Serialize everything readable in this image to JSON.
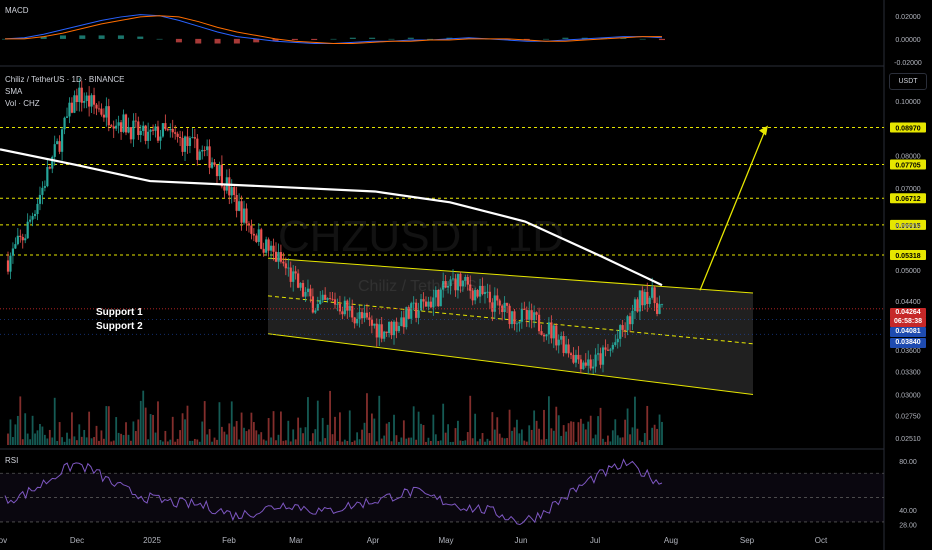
{
  "symbol": {
    "pair": "Chiliz / TetherUS · 1D · BINANCE",
    "indicator1": "SMA",
    "indicator2": "Vol · CHZ",
    "watermark_big": "CHZUSDT, 1D",
    "watermark_small": "Chiliz / TetherUS"
  },
  "panes": {
    "macd_title": "MACD",
    "rsi_title": "RSI",
    "currency_button": "USDT"
  },
  "annotations": {
    "support1": "Support 1",
    "support2": "Support 2"
  },
  "price_tags": {
    "current": "0.04264",
    "countdown": "06:58:38",
    "support1": "0.04081",
    "support2": "0.03840"
  },
  "colors": {
    "background": "#000000",
    "candle_up": "#26a69a",
    "candle_down": "#ef5350",
    "sma": "#ffffff",
    "level_line": "#e6e600",
    "channel_fill": "#3a3a3a",
    "macd_line": "#2962ff",
    "signal_line": "#ff6d00",
    "rsi_line": "#7e57c2",
    "current_tag": "#c62828",
    "support_tag": "#1e4bb0"
  },
  "chart_data": [
    {
      "type": "line",
      "title": "MACD",
      "ylim": [
        -0.02,
        0.025
      ],
      "y_ticks": [
        "0.02000",
        "0.00000",
        "-0.02000"
      ],
      "series": [
        {
          "name": "",
          "values": [
            0.0,
            0.001,
            0.004,
            0.008,
            0.012,
            0.016,
            0.019,
            0.021,
            0.02,
            0.016,
            0.011,
            0.006,
            0.002,
            0.0,
            -0.002,
            -0.003,
            -0.004,
            -0.004,
            -0.003,
            -0.002,
            -0.002,
            -0.001,
            -0.001,
            0.0,
            0.001,
            0.0,
            -0.001,
            -0.002,
            -0.002,
            -0.001,
            0.0,
            0.001,
            0.002,
            0.002,
            0.001
          ]
        },
        {
          "name": "",
          "values": [
            0.0,
            0.0,
            0.002,
            0.005,
            0.009,
            0.013,
            0.016,
            0.019,
            0.02,
            0.019,
            0.015,
            0.01,
            0.006,
            0.003,
            0.0,
            -0.002,
            -0.003,
            -0.004,
            -0.004,
            -0.003,
            -0.002,
            -0.002,
            -0.001,
            -0.001,
            0.0,
            0.0,
            0.0,
            -0.001,
            -0.002,
            -0.002,
            -0.001,
            0.0,
            0.001,
            0.002,
            0.002
          ]
        }
      ]
    },
    {
      "type": "line",
      "title": "Chiliz / TetherUS · 1D · BINANCE",
      "y_scale": "log",
      "y_ticks": [
        "0.10000",
        "0.08000",
        "0.07000",
        "0.06000",
        "0.05000",
        "0.04400",
        "0.04000",
        "0.03600",
        "0.03300",
        "0.03000",
        "0.02750",
        "0.02510"
      ],
      "x_ticks": [
        "Nov",
        "Dec",
        "2025",
        "Feb",
        "Mar",
        "Apr",
        "May",
        "Jun",
        "Jul",
        "Aug",
        "Sep",
        "Oct"
      ],
      "horizontal_levels": [
        0.0897,
        0.07705,
        0.06712,
        0.06015,
        0.05318
      ],
      "level_labels": [
        "0.08970",
        "0.07705",
        "0.06712",
        "0.06015",
        "0.05318"
      ],
      "series": [
        {
          "name": "",
          "x": [
            "Nov 3",
            "Nov 10",
            "Nov 17",
            "Nov 24",
            "Dec 1",
            "Dec 8",
            "Dec 15",
            "Dec 22",
            "Dec 29",
            "Jan 5",
            "Jan 12",
            "Jan 19",
            "Jan 26",
            "Feb 2",
            "Feb 9",
            "Feb 16",
            "Feb 23",
            "Mar 2",
            "Mar 9",
            "Mar 16",
            "Mar 23",
            "Mar 30",
            "Apr 6",
            "Apr 13",
            "Apr 20",
            "Apr 27",
            "May 4",
            "May 11",
            "May 18",
            "May 25",
            "Jun 1",
            "Jun 8",
            "Jun 15",
            "Jun 22",
            "Jun 29",
            "Jul 6",
            "Jul 13",
            "Jul 20",
            "Jul 27"
          ],
          "values": [
            0.052,
            0.058,
            0.07,
            0.085,
            0.103,
            0.098,
            0.094,
            0.09,
            0.086,
            0.088,
            0.085,
            0.082,
            0.078,
            0.068,
            0.06,
            0.055,
            0.051,
            0.046,
            0.043,
            0.044,
            0.042,
            0.04,
            0.039,
            0.041,
            0.043,
            0.045,
            0.048,
            0.046,
            0.044,
            0.042,
            0.041,
            0.04,
            0.038,
            0.035,
            0.034,
            0.036,
            0.04,
            0.046,
            0.04264
          ]
        },
        {
          "name": "SMA",
          "x": [
            "Nov 3",
            "Dec 1",
            "Jan 5",
            "Feb 2",
            "Mar 2",
            "Apr 6",
            "May 4",
            "Jun 1",
            "Jul 6",
            "Jul 27"
          ],
          "values": [
            0.082,
            0.077,
            0.072,
            0.071,
            0.07,
            0.069,
            0.066,
            0.061,
            0.053,
            0.047
          ]
        }
      ],
      "channel": {
        "upper_start": 0.0525,
        "upper_end": 0.0455,
        "lower_start": 0.0385,
        "lower_end": 0.03,
        "x_start": "Feb 23",
        "x_end": "Aug 18"
      },
      "projection_target": 0.0897,
      "current_price": 0.04264
    },
    {
      "type": "line",
      "title": "RSI",
      "ylim": [
        25,
        85
      ],
      "y_ticks": [
        "80.00",
        "40.00",
        "28.00"
      ],
      "series": [
        {
          "name": "",
          "values": [
            48,
            52,
            60,
            70,
            78,
            72,
            62,
            55,
            50,
            47,
            45,
            44,
            40,
            35,
            38,
            42,
            45,
            41,
            38,
            42,
            45,
            48,
            52,
            55,
            50,
            46,
            42,
            40,
            36,
            30,
            35,
            45,
            55,
            65,
            72,
            78,
            70,
            62
          ]
        }
      ]
    }
  ]
}
